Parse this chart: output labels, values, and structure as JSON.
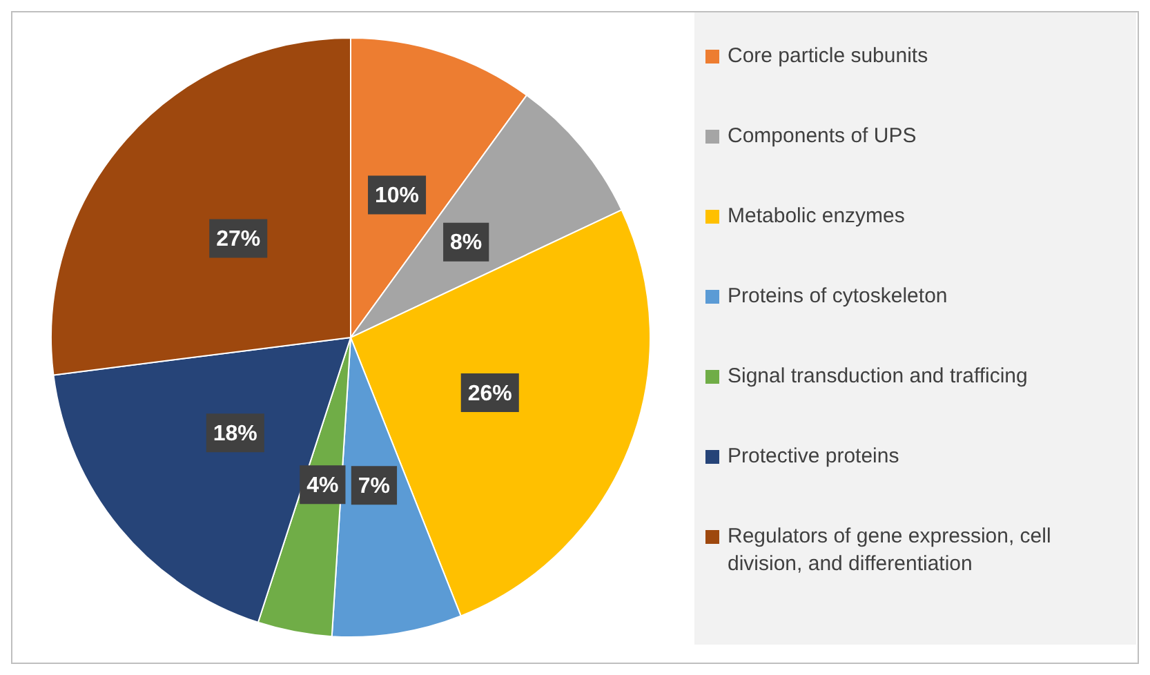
{
  "chart_data": {
    "type": "pie",
    "categories": [
      "Core particle subunits",
      "Components of UPS",
      "Metabolic enzymes",
      "Proteins of cytoskeleton",
      "Signal transduction and trafficing",
      "Protective proteins",
      "Regulators of gene expression, cell division, and differentiation"
    ],
    "values": [
      10,
      8,
      26,
      7,
      4,
      18,
      27
    ],
    "colors": [
      "#ed7d31",
      "#a5a5a5",
      "#ffc000",
      "#5b9bd5",
      "#70ad47",
      "#264478",
      "#9e480e"
    ],
    "value_labels": [
      "10%",
      "8%",
      "26%",
      "7%",
      "4%",
      "18%",
      "27%"
    ],
    "legend": "right"
  }
}
